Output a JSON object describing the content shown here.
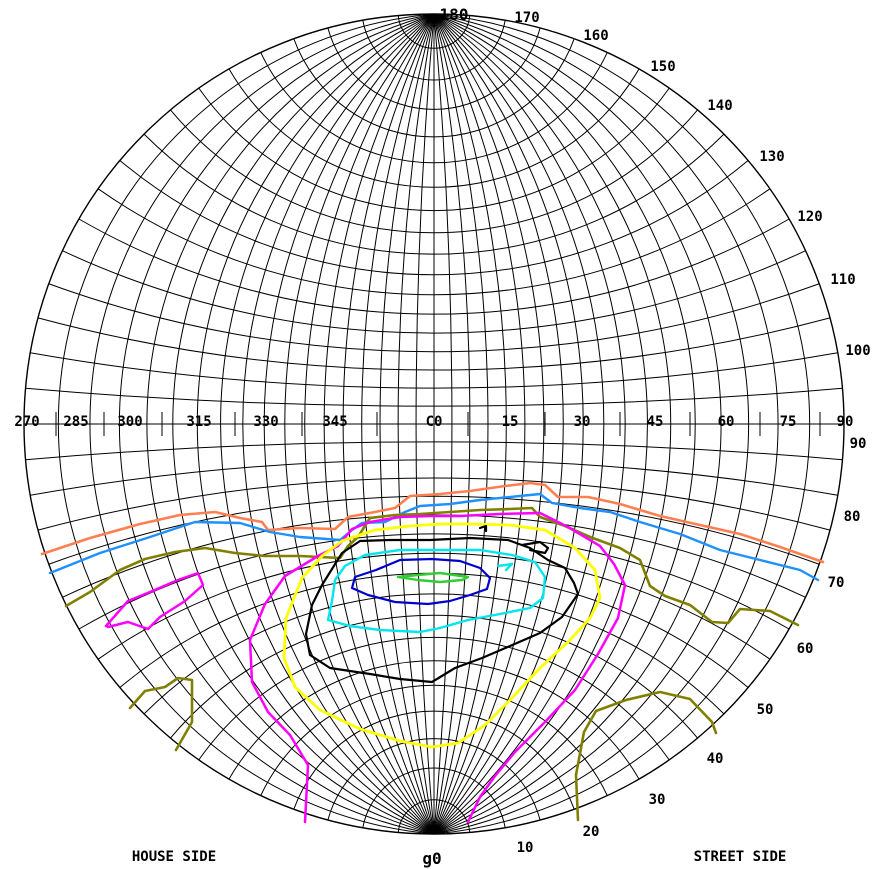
{
  "top_pole_label": "180",
  "bottom_pole_label": "90",
  "bottom_center_label": "g0",
  "left_corner_label": "HOUSE SIDE",
  "right_corner_label": "STREET SIDE",
  "equator_labels": [
    "270",
    "285",
    "300",
    "315",
    "330",
    "345",
    "C0",
    "15",
    "30",
    "45",
    "60",
    "75",
    "90"
  ],
  "upper_rim_labels": [
    "170",
    "160",
    "150",
    "140",
    "130",
    "120",
    "110",
    "100"
  ],
  "lower_rim_labels": [
    "90",
    "80",
    "70",
    "60",
    "50",
    "40",
    "30",
    "20",
    "10"
  ],
  "grid_color": "#000000",
  "contours": [
    {
      "color": "#ff7f50",
      "kind": "band-upper"
    },
    {
      "color": "#1e90ff",
      "kind": "band-lower"
    },
    {
      "color": "#808000",
      "kind": "band-and-patches"
    },
    {
      "color": "#ff00ff",
      "kind": "loop-and-patch"
    },
    {
      "color": "#ffff00",
      "kind": "loop"
    },
    {
      "color": "#000000",
      "kind": "loop"
    },
    {
      "color": "#00e5ee",
      "kind": "loop"
    },
    {
      "color": "#0000cd",
      "kind": "loop"
    },
    {
      "color": "#32cd32",
      "kind": "loop"
    }
  ]
}
